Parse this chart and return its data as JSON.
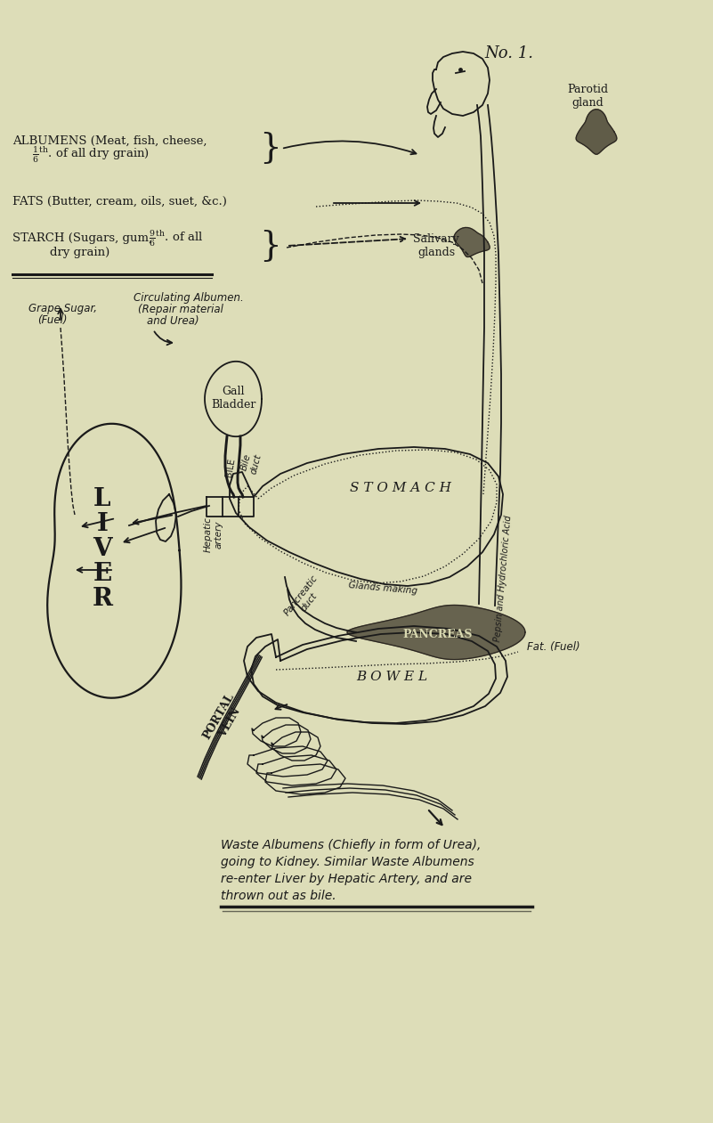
{
  "bg_color": "#ddddb8",
  "line_color": "#1a1a1a",
  "fig_width": 8.01,
  "fig_height": 12.61,
  "title": "No. 1.",
  "caption_lines": [
    "Waste Albumens (Chiefly in form of Urea),",
    "going to Kidney. Similar Waste Albumens",
    "re-enter Liver by Hepatic Artery, and are",
    "thrown out as bile."
  ],
  "text_color": "#1a1a1a"
}
